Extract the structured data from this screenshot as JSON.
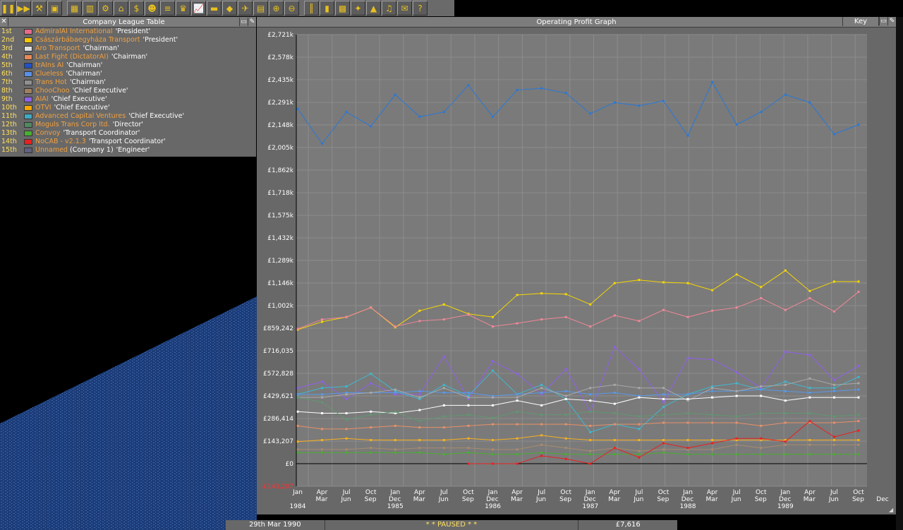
{
  "toolbar": {
    "buttons": [
      {
        "name": "pause",
        "glyph": "❚❚"
      },
      {
        "name": "fast-forward",
        "glyph": "▶▶"
      },
      {
        "name": "settings",
        "glyph": "⚒"
      },
      {
        "name": "save",
        "glyph": "▣"
      },
      {
        "name": "map",
        "glyph": "▦"
      },
      {
        "name": "town-directory",
        "glyph": "▥"
      },
      {
        "name": "subsidies",
        "glyph": "⚙"
      },
      {
        "name": "stations",
        "glyph": "⌂"
      },
      {
        "name": "finances",
        "glyph": "$"
      },
      {
        "name": "company",
        "glyph": "☻"
      },
      {
        "name": "story",
        "glyph": "≡"
      },
      {
        "name": "league",
        "glyph": "♛"
      },
      {
        "name": "graphs",
        "glyph": "📈"
      },
      {
        "name": "road-vehicles",
        "glyph": "▬"
      },
      {
        "name": "ships",
        "glyph": "◆"
      },
      {
        "name": "aircraft",
        "glyph": "✈"
      },
      {
        "name": "trains",
        "glyph": "▤"
      },
      {
        "name": "zoom-in",
        "glyph": "⊕"
      },
      {
        "name": "zoom-out",
        "glyph": "⊖"
      },
      {
        "name": "build-rail",
        "glyph": "║"
      },
      {
        "name": "build-road",
        "glyph": "▮"
      },
      {
        "name": "build-water",
        "glyph": "▩"
      },
      {
        "name": "build-airport",
        "glyph": "✦"
      },
      {
        "name": "landscaping",
        "glyph": "▲"
      },
      {
        "name": "music",
        "glyph": "♫"
      },
      {
        "name": "newspaper",
        "glyph": "✉"
      },
      {
        "name": "help",
        "glyph": "?"
      }
    ]
  },
  "league": {
    "title": "Company League Table",
    "rows": [
      {
        "pos": "1st",
        "name": "AdmiralAI International",
        "rank": "'President'",
        "color": "#e86a8a"
      },
      {
        "pos": "2nd",
        "name": "Császárbábaegyháza Transport",
        "rank": "'President'",
        "color": "#f8c800"
      },
      {
        "pos": "3rd",
        "name": "Aro Transport",
        "rank": "'Chairman'",
        "color": "#e0e0e0"
      },
      {
        "pos": "4th",
        "name": "Last Fight (DictatorAI)",
        "rank": "'Chairman'",
        "color": "#e88858"
      },
      {
        "pos": "5th",
        "name": "trAIns AI",
        "rank": "'Chairman'",
        "color": "#2050c8"
      },
      {
        "pos": "6th",
        "name": "Clueless",
        "rank": "'Chairman'",
        "color": "#5890e8"
      },
      {
        "pos": "7th",
        "name": "Trans Hot",
        "rank": "'Chairman'",
        "color": "#909090"
      },
      {
        "pos": "8th",
        "name": "ChooChoo",
        "rank": "'Chief Executive'",
        "color": "#a08060"
      },
      {
        "pos": "9th",
        "name": "AIAI",
        "rank": "'Chief Executive'",
        "color": "#9060e8"
      },
      {
        "pos": "10th",
        "name": "OTVI",
        "rank": "'Chief Executive'",
        "color": "#f8a800"
      },
      {
        "pos": "11th",
        "name": "Advanced Capital Ventures",
        "rank": "'Chief Executive'",
        "color": "#40a8c0"
      },
      {
        "pos": "12th",
        "name": "Moguls Trans Corp ltd.",
        "rank": "'Director'",
        "color": "#508860"
      },
      {
        "pos": "13th",
        "name": "Convoy",
        "rank": "'Transport Coordinator'",
        "color": "#48b030"
      },
      {
        "pos": "14th",
        "name": "NoCAB - v2.1.3",
        "rank": "'Transport Coordinator'",
        "color": "#e82020"
      },
      {
        "pos": "15th",
        "name": "Unnamed",
        "suffix": "(Company 1)",
        "rank": "'Engineer'",
        "color": "#606080"
      }
    ]
  },
  "graph": {
    "title": "Operating Profit Graph",
    "key_label": "Key"
  },
  "chart_data": {
    "type": "line",
    "title": "Operating Profit Graph",
    "y_ticks": [
      "£2,721k",
      "£2,578k",
      "£2,435k",
      "£2,291k",
      "£2,148k",
      "£2,005k",
      "£1,862k",
      "£1,718k",
      "£1,575k",
      "£1,432k",
      "£1,289k",
      "£1,146k",
      "£1,002k",
      "£859,242",
      "£716,035",
      "£572,828",
      "£429,621",
      "£286,414",
      "£143,207",
      "£0",
      "-£143,207"
    ],
    "y_tick_values": [
      2721,
      2578,
      2435,
      2291,
      2148,
      2005,
      1862,
      1718,
      1575,
      1432,
      1289,
      1146,
      1002,
      859,
      716,
      573,
      430,
      286,
      143,
      0,
      -143
    ],
    "ylim": [
      -143,
      2721
    ],
    "grid": true,
    "x_labels": [
      {
        "m": "Jan",
        "y": "1984"
      },
      {
        "m": "Apr",
        "y": ""
      },
      {
        "m": "Jul",
        "y": ""
      },
      {
        "m": "Oct",
        "y": ""
      },
      {
        "m": "Jan",
        "y": "1985"
      },
      {
        "m": "Apr",
        "y": ""
      },
      {
        "m": "Jul",
        "y": ""
      },
      {
        "m": "Oct",
        "y": ""
      },
      {
        "m": "Jan",
        "y": "1986"
      },
      {
        "m": "Apr",
        "y": ""
      },
      {
        "m": "Jul",
        "y": ""
      },
      {
        "m": "Oct",
        "y": ""
      },
      {
        "m": "Jan",
        "y": "1987"
      },
      {
        "m": "Apr",
        "y": ""
      },
      {
        "m": "Jul",
        "y": ""
      },
      {
        "m": "Oct",
        "y": ""
      },
      {
        "m": "Jan",
        "y": "1988"
      },
      {
        "m": "Apr",
        "y": ""
      },
      {
        "m": "Jul",
        "y": ""
      },
      {
        "m": "Oct",
        "y": ""
      },
      {
        "m": "Jan",
        "y": "1989"
      },
      {
        "m": "Apr",
        "y": ""
      },
      {
        "m": "Jul",
        "y": ""
      },
      {
        "m": "Oct",
        "y": ""
      }
    ],
    "x_labels_bottom": [
      "Mar",
      "Jun",
      "Sep",
      "Dec",
      "Mar",
      "Jun",
      "Sep",
      "Dec",
      "Mar",
      "Jun",
      "Sep",
      "Dec",
      "Mar",
      "Jun",
      "Sep",
      "Dec",
      "Mar",
      "Jun",
      "Sep",
      "Dec",
      "Mar",
      "Jun",
      "Sep",
      "Dec"
    ],
    "series": [
      {
        "color": "#2878d8",
        "values": [
          2250,
          2030,
          2230,
          2140,
          2340,
          2200,
          2230,
          2400,
          2200,
          2370,
          2380,
          2350,
          2220,
          2290,
          2270,
          2300,
          2080,
          2420,
          2150,
          2230,
          2340,
          2290,
          2090,
          2150
        ]
      },
      {
        "color": "#f8d800",
        "values": [
          850,
          900,
          930,
          990,
          865,
          970,
          1010,
          950,
          930,
          1070,
          1080,
          1075,
          1010,
          1145,
          1165,
          1150,
          1145,
          1100,
          1200,
          1120,
          1225,
          1095,
          1155,
          1155
        ]
      },
      {
        "color": "#f08898",
        "values": [
          855,
          915,
          930,
          990,
          870,
          905,
          915,
          945,
          870,
          890,
          915,
          930,
          870,
          940,
          905,
          975,
          930,
          970,
          990,
          1050,
          975,
          1050,
          965,
          1090
        ]
      },
      {
        "color": "#9060e8",
        "values": [
          480,
          520,
          410,
          510,
          440,
          440,
          680,
          410,
          650,
          570,
          440,
          600,
          330,
          740,
          600,
          390,
          670,
          660,
          580,
          480,
          710,
          690,
          530,
          620
        ]
      },
      {
        "color": "#40b8d0",
        "values": [
          440,
          480,
          490,
          570,
          460,
          410,
          500,
          430,
          590,
          440,
          500,
          410,
          200,
          250,
          220,
          360,
          440,
          490,
          510,
          470,
          520,
          480,
          480,
          550
        ]
      },
      {
        "color": "#5898e8",
        "values": [
          440,
          440,
          450,
          450,
          450,
          460,
          450,
          450,
          430,
          440,
          450,
          460,
          440,
          450,
          430,
          440,
          440,
          460,
          460,
          470,
          460,
          450,
          460,
          470
        ]
      },
      {
        "color": "#a8a8a8",
        "values": [
          420,
          420,
          440,
          450,
          470,
          420,
          480,
          420,
          420,
          420,
          480,
          430,
          480,
          500,
          480,
          480,
          400,
          480,
          460,
          490,
          500,
          540,
          500,
          510
        ]
      },
      {
        "color": "#ffffff",
        "values": [
          330,
          320,
          320,
          330,
          320,
          340,
          370,
          370,
          370,
          400,
          370,
          410,
          400,
          380,
          420,
          410,
          410,
          420,
          430,
          430,
          400,
          420,
          420,
          420
        ]
      },
      {
        "color": "#609870",
        "values": [
          420,
          390,
          280,
          310,
          330,
          270,
          300,
          310,
          290,
          330,
          310,
          310,
          330,
          320,
          300,
          310,
          320,
          310,
          300,
          320,
          320,
          320,
          300,
          310
        ]
      },
      {
        "color": "#e89068",
        "values": [
          240,
          220,
          220,
          230,
          240,
          230,
          230,
          240,
          250,
          250,
          250,
          250,
          240,
          250,
          250,
          260,
          260,
          260,
          260,
          240,
          260,
          260,
          260,
          270
        ]
      },
      {
        "color": "#f8b020",
        "values": [
          140,
          150,
          160,
          150,
          150,
          150,
          150,
          160,
          150,
          160,
          180,
          160,
          150,
          150,
          150,
          150,
          150,
          150,
          150,
          150,
          150,
          150,
          150,
          150
        ]
      },
      {
        "color": "#a88c70",
        "values": [
          90,
          90,
          90,
          100,
          90,
          100,
          100,
          100,
          90,
          90,
          120,
          100,
          80,
          100,
          80,
          90,
          90,
          90,
          120,
          100,
          120,
          120,
          120,
          120
        ]
      },
      {
        "color": "#48b030",
        "values": [
          70,
          70,
          70,
          70,
          70,
          70,
          60,
          70,
          60,
          60,
          70,
          60,
          60,
          60,
          60,
          70,
          60,
          60,
          60,
          60,
          60,
          60,
          60,
          60
        ]
      },
      {
        "color": "#e82020",
        "start": 7,
        "values": [
          null,
          null,
          null,
          null,
          null,
          null,
          null,
          0,
          0,
          0,
          50,
          30,
          0,
          100,
          40,
          130,
          100,
          130,
          160,
          160,
          140,
          270,
          170,
          210
        ]
      }
    ]
  },
  "status": {
    "date": "29th Mar 1990",
    "paused": "*  *  PAUSED  *  *",
    "money": "£7,616"
  }
}
